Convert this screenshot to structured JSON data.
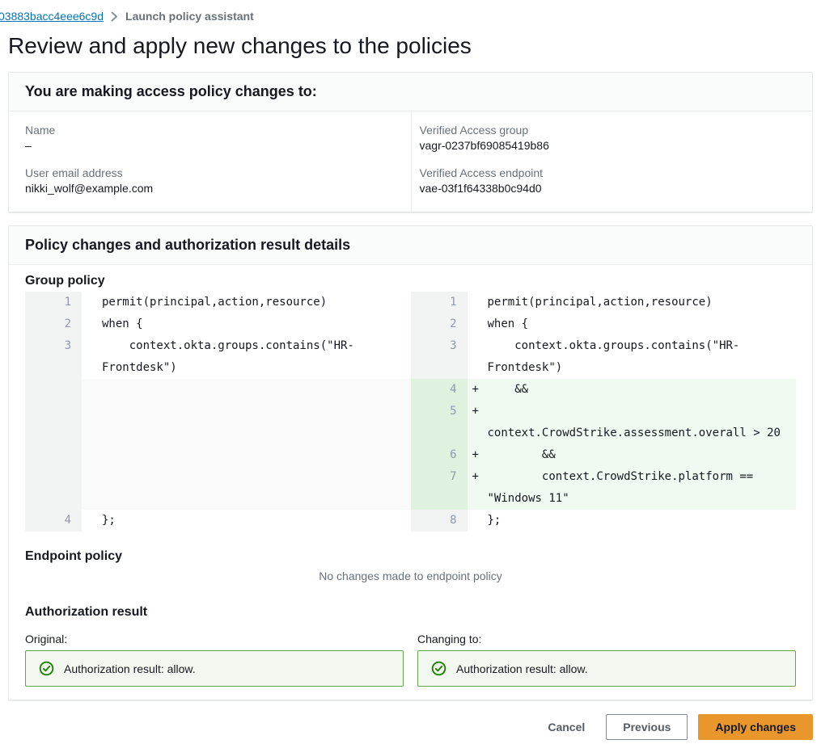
{
  "breadcrumb": {
    "link": "03883bacc4eee6c9d",
    "current": "Launch policy assistant"
  },
  "page_title": "Review and apply new changes to the policies",
  "target_card": {
    "title": "You are making access policy changes to:",
    "fields": [
      {
        "label": "Name",
        "value": "–"
      },
      {
        "label": "User email address",
        "value": "nikki_wolf@example.com"
      },
      {
        "label": "Verified Access group",
        "value": "vagr-0237bf69085419b86"
      },
      {
        "label": "Verified Access endpoint",
        "value": "vae-03f1f64338b0c94d0"
      }
    ]
  },
  "details_card": {
    "title": "Policy changes and authorization result details",
    "group_policy": {
      "heading": "Group policy",
      "diff": {
        "left_rows": [
          {
            "num": "1",
            "marker": "",
            "text": "permit(principal,action,resource)",
            "type": "normal"
          },
          {
            "num": "2",
            "marker": "",
            "text": "when {",
            "type": "normal"
          },
          {
            "num": "3",
            "marker": "",
            "text": "    context.okta.groups.contains(\"HR-",
            "type": "normal"
          },
          {
            "num": "",
            "marker": "",
            "text": "Frontdesk\")",
            "type": "normal"
          },
          {
            "type": "spacer",
            "height": 162
          },
          {
            "num": "4",
            "marker": "",
            "text": "};",
            "type": "normal"
          }
        ],
        "right_rows": [
          {
            "num": "1",
            "marker": "",
            "text": "permit(principal,action,resource)",
            "type": "normal"
          },
          {
            "num": "2",
            "marker": "",
            "text": "when {",
            "type": "normal"
          },
          {
            "num": "3",
            "marker": "",
            "text": "    context.okta.groups.contains(\"HR-",
            "type": "normal"
          },
          {
            "num": "",
            "marker": "",
            "text": "Frontdesk\")",
            "type": "normal"
          },
          {
            "num": "4",
            "marker": "+",
            "text": "    &&",
            "type": "added"
          },
          {
            "num": "5",
            "marker": "+",
            "text": "",
            "type": "added"
          },
          {
            "num": "",
            "marker": "",
            "text": "context.CrowdStrike.assessment.overall > 20",
            "type": "added"
          },
          {
            "num": "6",
            "marker": "+",
            "text": "        &&",
            "type": "added"
          },
          {
            "num": "7",
            "marker": "+",
            "text": "        context.CrowdStrike.platform ==",
            "type": "added"
          },
          {
            "num": "",
            "marker": "",
            "text": "\"Windows 11\"",
            "type": "added"
          },
          {
            "num": "8",
            "marker": "",
            "text": "};",
            "type": "normal"
          }
        ]
      }
    },
    "endpoint_policy": {
      "heading": "Endpoint policy",
      "empty_message": "No changes made to endpoint policy"
    },
    "authorization": {
      "heading": "Authorization result",
      "original_label": "Original:",
      "changing_label": "Changing to:",
      "original_result": "Authorization result: allow.",
      "changing_result": "Authorization result: allow."
    }
  },
  "footer": {
    "cancel_label": "Cancel",
    "previous_label": "Previous",
    "apply_label": "Apply changes"
  },
  "colors": {
    "link_blue": "#0073bb",
    "success_green": "#1d8102",
    "success_border": "#67a353",
    "success_bg": "#f2f8f0",
    "added_line_bg": "#f1faf1",
    "added_gutter_bg": "#dff2df",
    "primary_button_bg": "#e9972d"
  }
}
